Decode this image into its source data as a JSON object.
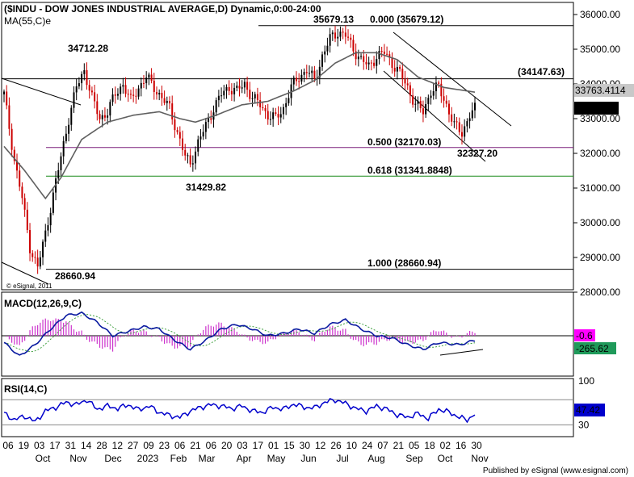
{
  "title": "($INDU - DOW JONES INDUSTRIAL AVERAGE,D) Dynamic,0:00-24:00",
  "ma_label": "MA(55,C)e",
  "macd_label": "MACD(12,26,9,C)",
  "rsi_label": "RSI(14,C)",
  "copyright": "© eSignal, 2011",
  "footer": "Published by eSignal (www.esignal.com)",
  "colors": {
    "up": "#000000",
    "down": "#cc0000",
    "ma": "#606060",
    "fib50": "#7a1f7a",
    "fib618": "#1a8c1a",
    "macd": "#0a1aa0",
    "signal": "#40a040",
    "hist": "#cc33cc",
    "rsi": "#0000cc",
    "grid_box": "#000000"
  },
  "chart_data": [
    {
      "type": "candlestick",
      "name": "price",
      "ylim": [
        27600,
        36600
      ],
      "yticks": [
        "36000.00",
        "35000.00",
        "34000.00",
        "33000.00",
        "32000.00",
        "31000.00",
        "30000.00",
        "29000.00",
        "28000.00"
      ],
      "ytick_values": [
        36000,
        35000,
        34000,
        33000,
        32000,
        31000,
        30000,
        29000,
        28000
      ],
      "x_date_labels": [
        "06",
        "19",
        "03",
        "17",
        "31",
        "14",
        "28",
        "12",
        "27",
        "09",
        "23",
        "06",
        "21",
        "06",
        "20",
        "03",
        "17",
        "01",
        "15",
        "30",
        "12",
        "26",
        "10",
        "24",
        "07",
        "21",
        "05",
        "18",
        "02",
        "16",
        "30"
      ],
      "x_month_labels": [
        "Oct",
        "Nov",
        "Dec",
        "2023",
        "Feb",
        "Mar",
        "Apr",
        "May",
        "Jun",
        "Jul",
        "Aug",
        "Sep",
        "Oct",
        "Nov"
      ],
      "annotations": {
        "high_2022": "34712.28",
        "low_oct_2022": "28660.94",
        "low_mar_2023": "31429.82",
        "high_jul_2023": "35679.13",
        "low_oct_2023": "32327.20",
        "resistance": "(34147.63)",
        "ma_value": "33763.4114",
        "last_price": "33274.58"
      },
      "fib_levels": [
        {
          "label": "0.000 (35679.12)",
          "value": 35679.12
        },
        {
          "label": "0.500 (32170.03)",
          "value": 32170.03
        },
        {
          "label": "0.618 (31341.8848)",
          "value": 31341.8848
        },
        {
          "label": "1.000 (28660.94)",
          "value": 28660.94
        }
      ],
      "horizontal_line": 34147.63,
      "price_path": [
        [
          0,
          33700
        ],
        [
          4,
          31800
        ],
        [
          7,
          30700
        ],
        [
          10,
          29300
        ],
        [
          13,
          28700
        ],
        [
          16,
          29700
        ],
        [
          19,
          30800
        ],
        [
          22,
          31900
        ],
        [
          25,
          33000
        ],
        [
          28,
          33900
        ],
        [
          31,
          34400
        ],
        [
          34,
          33600
        ],
        [
          37,
          33000
        ],
        [
          40,
          33200
        ],
        [
          43,
          33700
        ],
        [
          46,
          34000
        ],
        [
          49,
          33500
        ],
        [
          52,
          33900
        ],
        [
          55,
          34200
        ],
        [
          58,
          33900
        ],
        [
          61,
          33600
        ],
        [
          64,
          33300
        ],
        [
          67,
          32600
        ],
        [
          70,
          31900
        ],
        [
          72,
          31700
        ],
        [
          75,
          32300
        ],
        [
          78,
          32800
        ],
        [
          81,
          33300
        ],
        [
          84,
          33700
        ],
        [
          87,
          33900
        ],
        [
          90,
          33800
        ],
        [
          93,
          34000
        ],
        [
          96,
          33600
        ],
        [
          99,
          33400
        ],
        [
          102,
          33100
        ],
        [
          105,
          33000
        ],
        [
          108,
          33300
        ],
        [
          111,
          33900
        ],
        [
          114,
          34200
        ],
        [
          117,
          34400
        ],
        [
          120,
          34100
        ],
        [
          123,
          34800
        ],
        [
          126,
          35300
        ],
        [
          129,
          35500
        ],
        [
          132,
          35400
        ],
        [
          135,
          35000
        ],
        [
          138,
          34700
        ],
        [
          141,
          34500
        ],
        [
          144,
          34800
        ],
        [
          147,
          34900
        ],
        [
          150,
          34600
        ],
        [
          153,
          34300
        ],
        [
          156,
          33900
        ],
        [
          159,
          33400
        ],
        [
          162,
          33200
        ],
        [
          165,
          33800
        ],
        [
          168,
          33900
        ],
        [
          171,
          33400
        ],
        [
          174,
          32800
        ],
        [
          177,
          32600
        ],
        [
          180,
          33100
        ],
        [
          182,
          33275
        ]
      ],
      "ma_path": [
        [
          0,
          32200
        ],
        [
          8,
          31500
        ],
        [
          16,
          30700
        ],
        [
          22,
          31300
        ],
        [
          30,
          32400
        ],
        [
          40,
          32900
        ],
        [
          50,
          33100
        ],
        [
          60,
          33200
        ],
        [
          68,
          33000
        ],
        [
          74,
          32900
        ],
        [
          82,
          33100
        ],
        [
          92,
          33400
        ],
        [
          102,
          33500
        ],
        [
          112,
          33800
        ],
        [
          120,
          34100
        ],
        [
          128,
          34600
        ],
        [
          136,
          34900
        ],
        [
          144,
          34900
        ],
        [
          152,
          34700
        ],
        [
          160,
          34200
        ],
        [
          170,
          33900
        ],
        [
          182,
          33763
        ]
      ]
    },
    {
      "type": "line",
      "name": "macd",
      "series": [
        {
          "name": "",
          "points": [
            [
              0,
              -0.3
            ],
            [
              6,
              -0.9
            ],
            [
              12,
              -0.4
            ],
            [
              18,
              0.3
            ],
            [
              24,
              0.9
            ],
            [
              30,
              1.0
            ],
            [
              36,
              0.6
            ],
            [
              42,
              0.0
            ],
            [
              48,
              0.2
            ],
            [
              54,
              0.4
            ],
            [
              60,
              0.3
            ],
            [
              66,
              -0.2
            ],
            [
              72,
              -0.6
            ],
            [
              78,
              -0.2
            ],
            [
              84,
              0.3
            ],
            [
              90,
              0.5
            ],
            [
              96,
              0.3
            ],
            [
              102,
              0.0
            ],
            [
              108,
              0.1
            ],
            [
              114,
              0.3
            ],
            [
              120,
              0.1
            ],
            [
              126,
              0.5
            ],
            [
              132,
              0.7
            ],
            [
              138,
              0.3
            ],
            [
              144,
              0.0
            ],
            [
              150,
              -0.1
            ],
            [
              156,
              -0.4
            ],
            [
              162,
              -0.6
            ],
            [
              168,
              -0.3
            ],
            [
              176,
              -0.4
            ],
            [
              182,
              -0.2
            ]
          ]
        }
      ],
      "readouts": [
        "-0.6",
        "-265.62"
      ]
    },
    {
      "type": "line",
      "name": "rsi",
      "ylim": [
        0,
        100
      ],
      "yticks": [
        "100",
        "30"
      ],
      "ytick_values": [
        100,
        30
      ],
      "readout": "47.42",
      "points": [
        [
          0,
          48
        ],
        [
          4,
          38
        ],
        [
          8,
          44
        ],
        [
          12,
          35
        ],
        [
          16,
          52
        ],
        [
          20,
          58
        ],
        [
          24,
          66
        ],
        [
          28,
          62
        ],
        [
          32,
          70
        ],
        [
          36,
          55
        ],
        [
          40,
          60
        ],
        [
          44,
          56
        ],
        [
          48,
          62
        ],
        [
          52,
          54
        ],
        [
          56,
          60
        ],
        [
          60,
          50
        ],
        [
          64,
          45
        ],
        [
          68,
          42
        ],
        [
          72,
          52
        ],
        [
          76,
          58
        ],
        [
          80,
          62
        ],
        [
          84,
          60
        ],
        [
          88,
          56
        ],
        [
          92,
          60
        ],
        [
          96,
          52
        ],
        [
          100,
          50
        ],
        [
          104,
          58
        ],
        [
          108,
          55
        ],
        [
          112,
          63
        ],
        [
          116,
          58
        ],
        [
          120,
          57
        ],
        [
          124,
          66
        ],
        [
          128,
          70
        ],
        [
          132,
          64
        ],
        [
          136,
          56
        ],
        [
          140,
          52
        ],
        [
          144,
          60
        ],
        [
          148,
          55
        ],
        [
          152,
          46
        ],
        [
          156,
          42
        ],
        [
          160,
          48
        ],
        [
          164,
          40
        ],
        [
          168,
          55
        ],
        [
          172,
          50
        ],
        [
          176,
          42
        ],
        [
          179,
          38
        ],
        [
          182,
          47
        ]
      ]
    }
  ]
}
